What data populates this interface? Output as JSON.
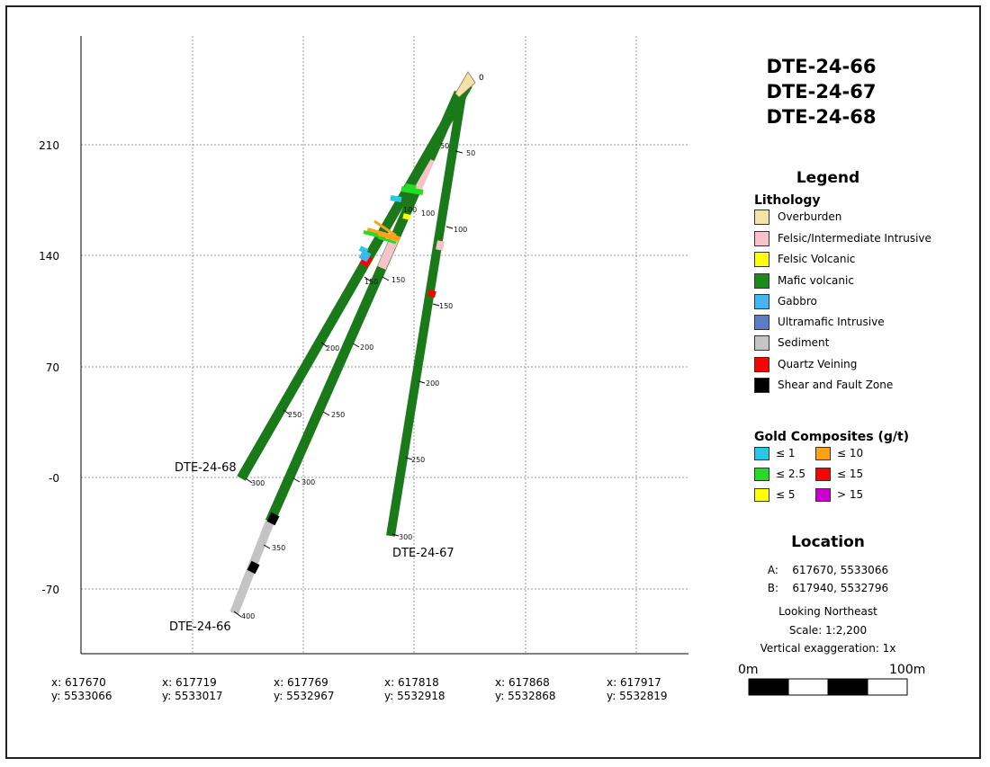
{
  "titles": [
    "DTE-24-66",
    "DTE-24-67",
    "DTE-24-68"
  ],
  "legend": {
    "title": "Legend",
    "lithology_title": "Lithology",
    "lithology": [
      {
        "label": "Overburden",
        "color": "#f5e2ab"
      },
      {
        "label": "Felsic/Intermediate Intrusive",
        "color": "#f7c2c8"
      },
      {
        "label": "Felsic Volcanic",
        "color": "#ffff00"
      },
      {
        "label": "Mafic volcanic",
        "color": "#1a8a1a"
      },
      {
        "label": "Gabbro",
        "color": "#45b4ef"
      },
      {
        "label": "Ultramafic Intrusive",
        "color": "#5b7dc8"
      },
      {
        "label": "Sediment",
        "color": "#c4c4c4"
      },
      {
        "label": "Quartz Veining",
        "color": "#ff0000"
      },
      {
        "label": "Shear and Fault Zone",
        "color": "#000000"
      }
    ],
    "gold_title": "Gold Composites (g/t)",
    "gold": [
      {
        "label": "≤ 1",
        "color": "#29c6e8"
      },
      {
        "label": "≤ 10",
        "color": "#ffa21a"
      },
      {
        "label": "≤ 2.5",
        "color": "#22dd22"
      },
      {
        "label": "≤ 15",
        "color": "#ff0000"
      },
      {
        "label": "≤ 5",
        "color": "#ffff00"
      },
      {
        "label": "> 15",
        "color": "#cc00cc"
      }
    ]
  },
  "location": {
    "title": "Location",
    "a": "A:    617670, 5533066",
    "b": "B:    617940, 5532796",
    "view": "Looking Northeast",
    "scale": "Scale: 1:2,200",
    "exaggeration": "Vertical exaggeration: 1x"
  },
  "scalebar": {
    "start": "0m",
    "end": "100m"
  },
  "y_axis_labels": [
    "210",
    "140",
    "70",
    "-0",
    "-70"
  ],
  "x_axis_labels": [
    {
      "x": "x: 617670",
      "y": "y: 5533066"
    },
    {
      "x": "x: 617719",
      "y": "y: 5533017"
    },
    {
      "x": "x: 617769",
      "y": "y: 5532967"
    },
    {
      "x": "x: 617818",
      "y": "y: 5532918"
    },
    {
      "x": "x: 617868",
      "y": "y: 5532868"
    },
    {
      "x": "x: 617917",
      "y": "y: 5532819"
    }
  ],
  "holes": {
    "dte66": {
      "label": "DTE-24-66",
      "depth_labels": [
        "150",
        "200",
        "250",
        "300",
        "350",
        "400"
      ]
    },
    "dte67": {
      "label": "DTE-24-67",
      "depth_labels": [
        "50",
        "100",
        "150",
        "200",
        "250",
        "300"
      ]
    },
    "dte68": {
      "label": "DTE-24-68",
      "depth_labels": [
        "50",
        "100",
        "150",
        "200",
        "250",
        "300"
      ]
    }
  },
  "collar_label": "0"
}
